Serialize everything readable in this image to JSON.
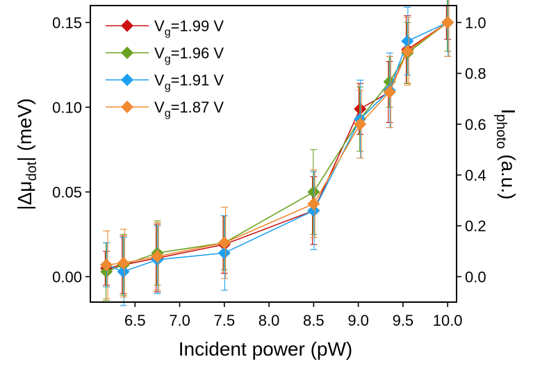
{
  "chart_data": {
    "type": "line",
    "markers": "diamond",
    "error_bars": true,
    "x": [
      6.18,
      6.37,
      6.75,
      7.5,
      8.5,
      9.02,
      9.35,
      9.55,
      10.0
    ],
    "xlabel": "Incident power (pW)",
    "xlim": [
      6.0,
      10.1
    ],
    "xticks": [
      "6.5",
      "7.0",
      "7.5",
      "8.0",
      "8.5",
      "9.0",
      "9.5",
      "10.0"
    ],
    "xtick_values": [
      6.5,
      7.0,
      7.5,
      8.0,
      8.5,
      9.0,
      9.5,
      10.0
    ],
    "ylabel_left": {
      "pre": "|Δμ",
      "sub": "dot",
      "post": "| (meV)"
    },
    "ylim_left": [
      -0.015,
      0.16
    ],
    "yticks_left": [
      "0.00",
      "0.05",
      "0.10",
      "0.15"
    ],
    "ytick_values_left": [
      0.0,
      0.05,
      0.1,
      0.15
    ],
    "ylabel_right": {
      "pre": "I",
      "sub": "photo",
      "post": " (a.u.)"
    },
    "yticks_right": [
      "0.0",
      "0.2",
      "0.4",
      "0.6",
      "0.8",
      "1.0"
    ],
    "ytick_values_right": [
      0.0,
      0.2,
      0.4,
      0.6,
      0.8,
      1.0
    ],
    "right_axis_scale": 0.15,
    "legend_position": "top-left",
    "series": [
      {
        "name": {
          "pre": "V",
          "sub": "g",
          "post": "=1.99 V"
        },
        "color": "#cc1111",
        "y": [
          0.005,
          0.007,
          0.011,
          0.019,
          0.039,
          0.099,
          0.109,
          0.134,
          0.15
        ],
        "err": [
          0.01,
          0.017,
          0.02,
          0.017,
          0.02,
          0.015,
          0.018,
          0.02,
          0.01
        ]
      },
      {
        "name": {
          "pre": "V",
          "sub": "g",
          "post": "=1.96 V"
        },
        "color": "#6aa121",
        "y": [
          0.003,
          0.007,
          0.014,
          0.02,
          0.05,
          0.093,
          0.115,
          0.132,
          0.15
        ],
        "err": [
          0.017,
          0.018,
          0.019,
          0.016,
          0.025,
          0.019,
          0.015,
          0.018,
          0.017
        ]
      },
      {
        "name": {
          "pre": "V",
          "sub": "g",
          "post": "=1.91 V"
        },
        "color": "#1ea0f0",
        "y": [
          0.007,
          0.003,
          0.01,
          0.014,
          0.039,
          0.093,
          0.11,
          0.139,
          0.15
        ],
        "err": [
          0.013,
          0.02,
          0.02,
          0.022,
          0.023,
          0.023,
          0.022,
          0.02,
          0.02
        ]
      },
      {
        "name": {
          "pre": "V",
          "sub": "g",
          "post": "=1.87 V"
        },
        "color": "#f08a30",
        "y": [
          0.007,
          0.008,
          0.012,
          0.02,
          0.043,
          0.09,
          0.109,
          0.133,
          0.15
        ],
        "err": [
          0.02,
          0.02,
          0.02,
          0.021,
          0.02,
          0.02,
          0.021,
          0.02,
          0.02
        ]
      }
    ]
  }
}
